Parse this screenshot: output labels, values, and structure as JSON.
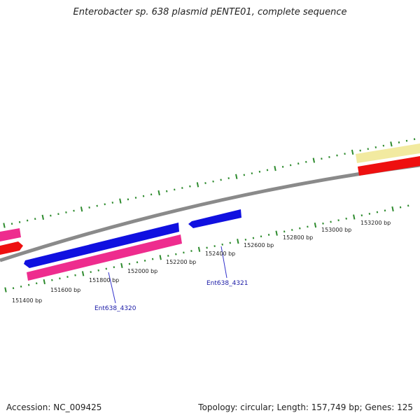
{
  "title": "Enterobacter sp. 638 plasmid pENTE01, complete sequence",
  "footer": {
    "accession": "Accession: NC_009425",
    "summary": "Topology: circular; Length: 157,749 bp; Genes: 125"
  },
  "colors": {
    "backbone": "#8a8a8a",
    "tick": "#2e8b2e",
    "gene_blue": "#1010e0",
    "gene_pink": "#ee2c8e",
    "gene_red": "#ee1010",
    "gene_yellow": "#f2eaa0",
    "label_line": "#3333cc"
  },
  "ticks": [
    {
      "label": "151400 bp"
    },
    {
      "label": "151600 bp"
    },
    {
      "label": "151800 bp"
    },
    {
      "label": "152000 bp"
    },
    {
      "label": "152200 bp"
    },
    {
      "label": "152400 bp"
    },
    {
      "label": "152600 bp"
    },
    {
      "label": "152800 bp"
    },
    {
      "label": "153000 bp"
    },
    {
      "label": "153200 bp"
    }
  ],
  "gene_labels": [
    {
      "label": "Ent638_4320"
    },
    {
      "label": "Ent638_4321"
    }
  ]
}
